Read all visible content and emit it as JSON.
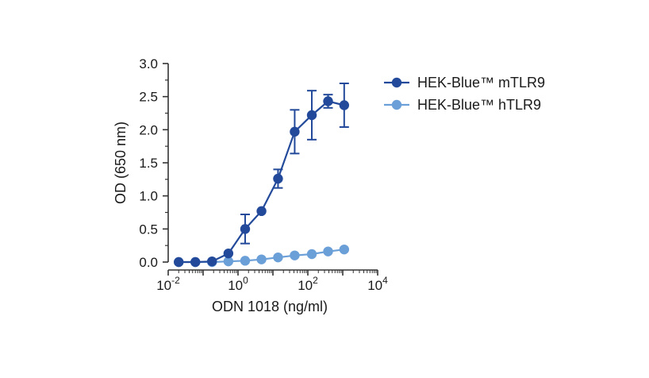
{
  "chart_data": {
    "type": "line",
    "title": "",
    "xlabel": "ODN 1018 (ng/ml)",
    "ylabel": "OD (650 nm)",
    "xscale": "log10",
    "xlim": [
      0.01,
      10000
    ],
    "ylim": [
      0.0,
      3.0
    ],
    "yticks": [
      "0.0",
      "0.5",
      "1.0",
      "1.5",
      "2.0",
      "2.5",
      "3.0"
    ],
    "xticks": [
      {
        "base": "10",
        "exp": "-2"
      },
      {
        "base": "10",
        "exp": "0"
      },
      {
        "base": "10",
        "exp": "2"
      },
      {
        "base": "10",
        "exp": "4"
      }
    ],
    "legend_position": "top-right",
    "series": [
      {
        "name": "HEK-Blue™ mTLR9",
        "color": "#234a9a",
        "x": [
          0.02,
          0.06,
          0.18,
          0.53,
          1.6,
          4.7,
          14,
          42,
          130,
          380,
          1100
        ],
        "y": [
          0.0,
          0.0,
          0.01,
          0.13,
          0.5,
          0.77,
          1.26,
          1.97,
          2.22,
          2.43,
          2.37
        ],
        "error": [
          0,
          0,
          0,
          0,
          0.22,
          0,
          0.14,
          0.33,
          0.37,
          0.1,
          0.33
        ]
      },
      {
        "name": "HEK-Blue™ hTLR9",
        "color": "#6b9fd8",
        "x": [
          0.02,
          0.06,
          0.18,
          0.53,
          1.6,
          4.7,
          14,
          42,
          130,
          380,
          1100
        ],
        "y": [
          0.0,
          0.0,
          0.0,
          0.01,
          0.02,
          0.04,
          0.07,
          0.1,
          0.12,
          0.16,
          0.19
        ],
        "error": [
          0,
          0,
          0,
          0,
          0,
          0,
          0,
          0,
          0,
          0,
          0
        ]
      }
    ]
  }
}
